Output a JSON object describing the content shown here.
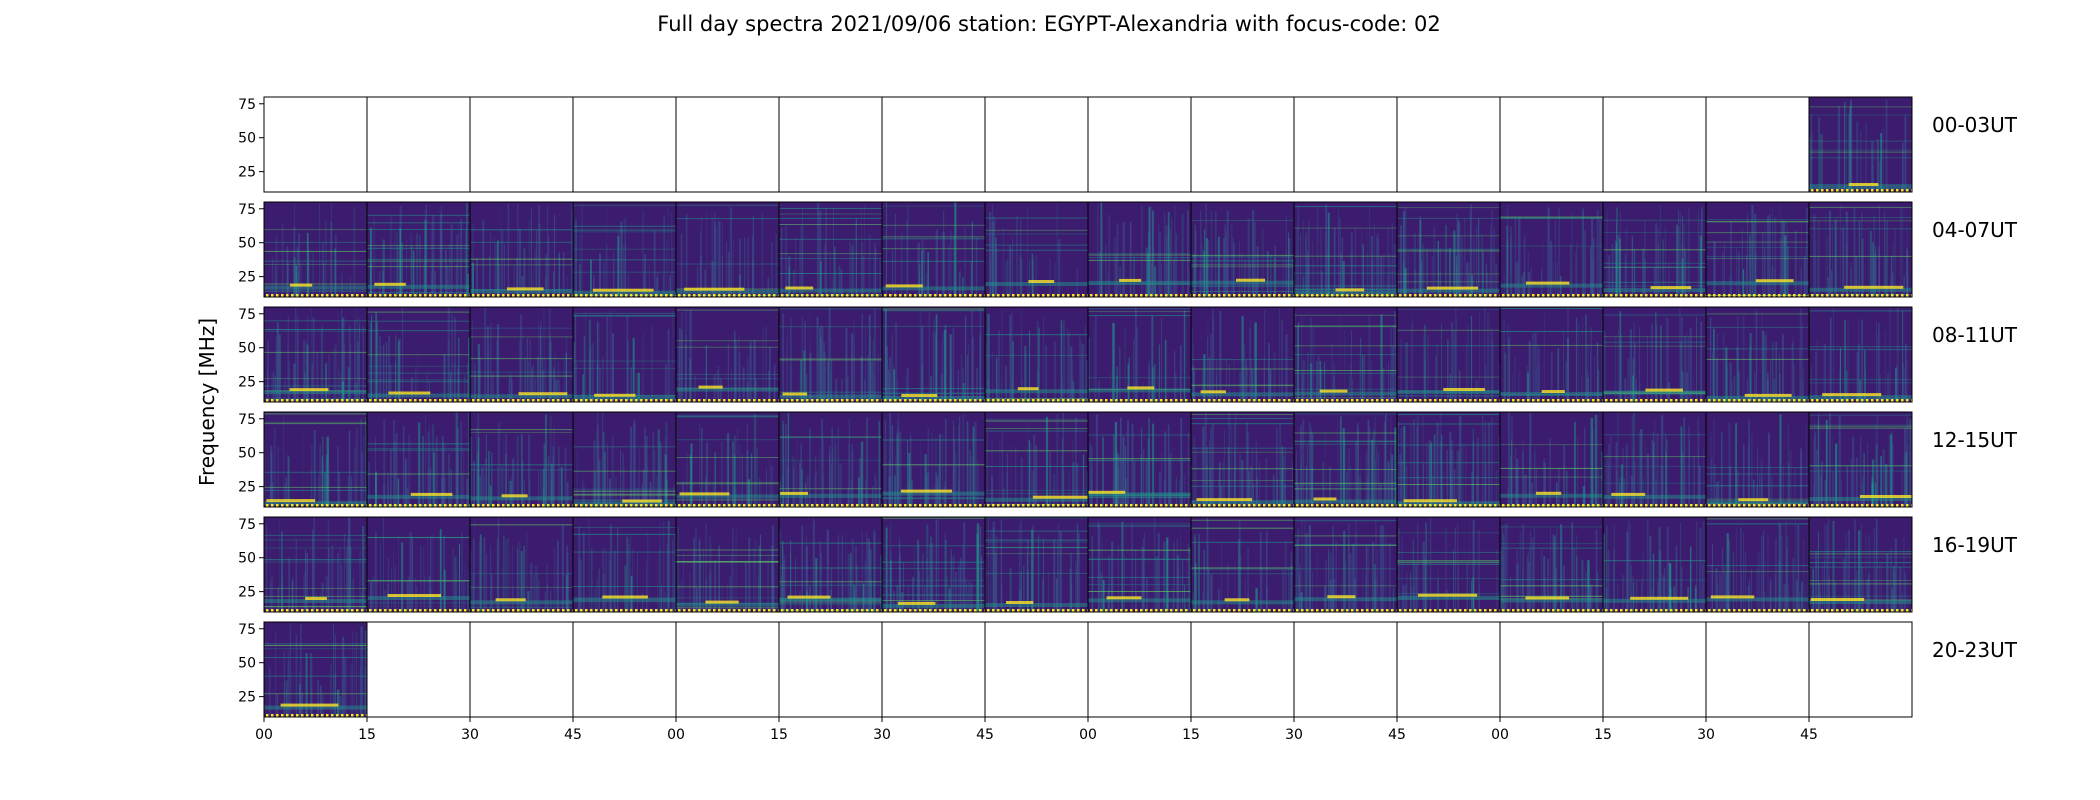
{
  "chart_data": {
    "type": "heatmap",
    "title": "Full day spectra 2021/09/06 station: EGYPT-Alexandria with focus-code: 02",
    "ylabel": "Frequency [MHz]",
    "xlabel": "",
    "ylim": [
      10,
      80
    ],
    "y_ticks": [
      25,
      50,
      75
    ],
    "x_tick_labels": [
      "00",
      "15",
      "30",
      "45",
      "00",
      "15",
      "30",
      "45",
      "00",
      "15",
      "30",
      "45",
      "00",
      "15",
      "30",
      "45"
    ],
    "rows": [
      {
        "label": "00-03UT",
        "panels": [
          0,
          0,
          0,
          0,
          0,
          0,
          0,
          0,
          0,
          0,
          0,
          0,
          0,
          0,
          0,
          1
        ]
      },
      {
        "label": "04-07UT",
        "panels": [
          1,
          1,
          1,
          1,
          1,
          1,
          1,
          1,
          1,
          1,
          1,
          1,
          1,
          1,
          1,
          1
        ]
      },
      {
        "label": "08-11UT",
        "panels": [
          1,
          1,
          1,
          1,
          1,
          1,
          1,
          1,
          1,
          1,
          1,
          1,
          1,
          1,
          1,
          1
        ]
      },
      {
        "label": "12-15UT",
        "panels": [
          1,
          1,
          1,
          1,
          1,
          1,
          1,
          1,
          1,
          1,
          1,
          1,
          1,
          1,
          1,
          1
        ]
      },
      {
        "label": "16-19UT",
        "panels": [
          1,
          1,
          1,
          1,
          1,
          1,
          1,
          1,
          1,
          1,
          1,
          1,
          1,
          1,
          1,
          1
        ]
      },
      {
        "label": "20-23UT",
        "panels": [
          1,
          0,
          0,
          0,
          0,
          0,
          0,
          0,
          0,
          0,
          0,
          0,
          0,
          0,
          0,
          0
        ]
      }
    ],
    "colormap": [
      "#440154",
      "#3b528b",
      "#21918c",
      "#5ec962",
      "#fde725"
    ],
    "background_color": "#3b1c6e",
    "grid": false
  }
}
